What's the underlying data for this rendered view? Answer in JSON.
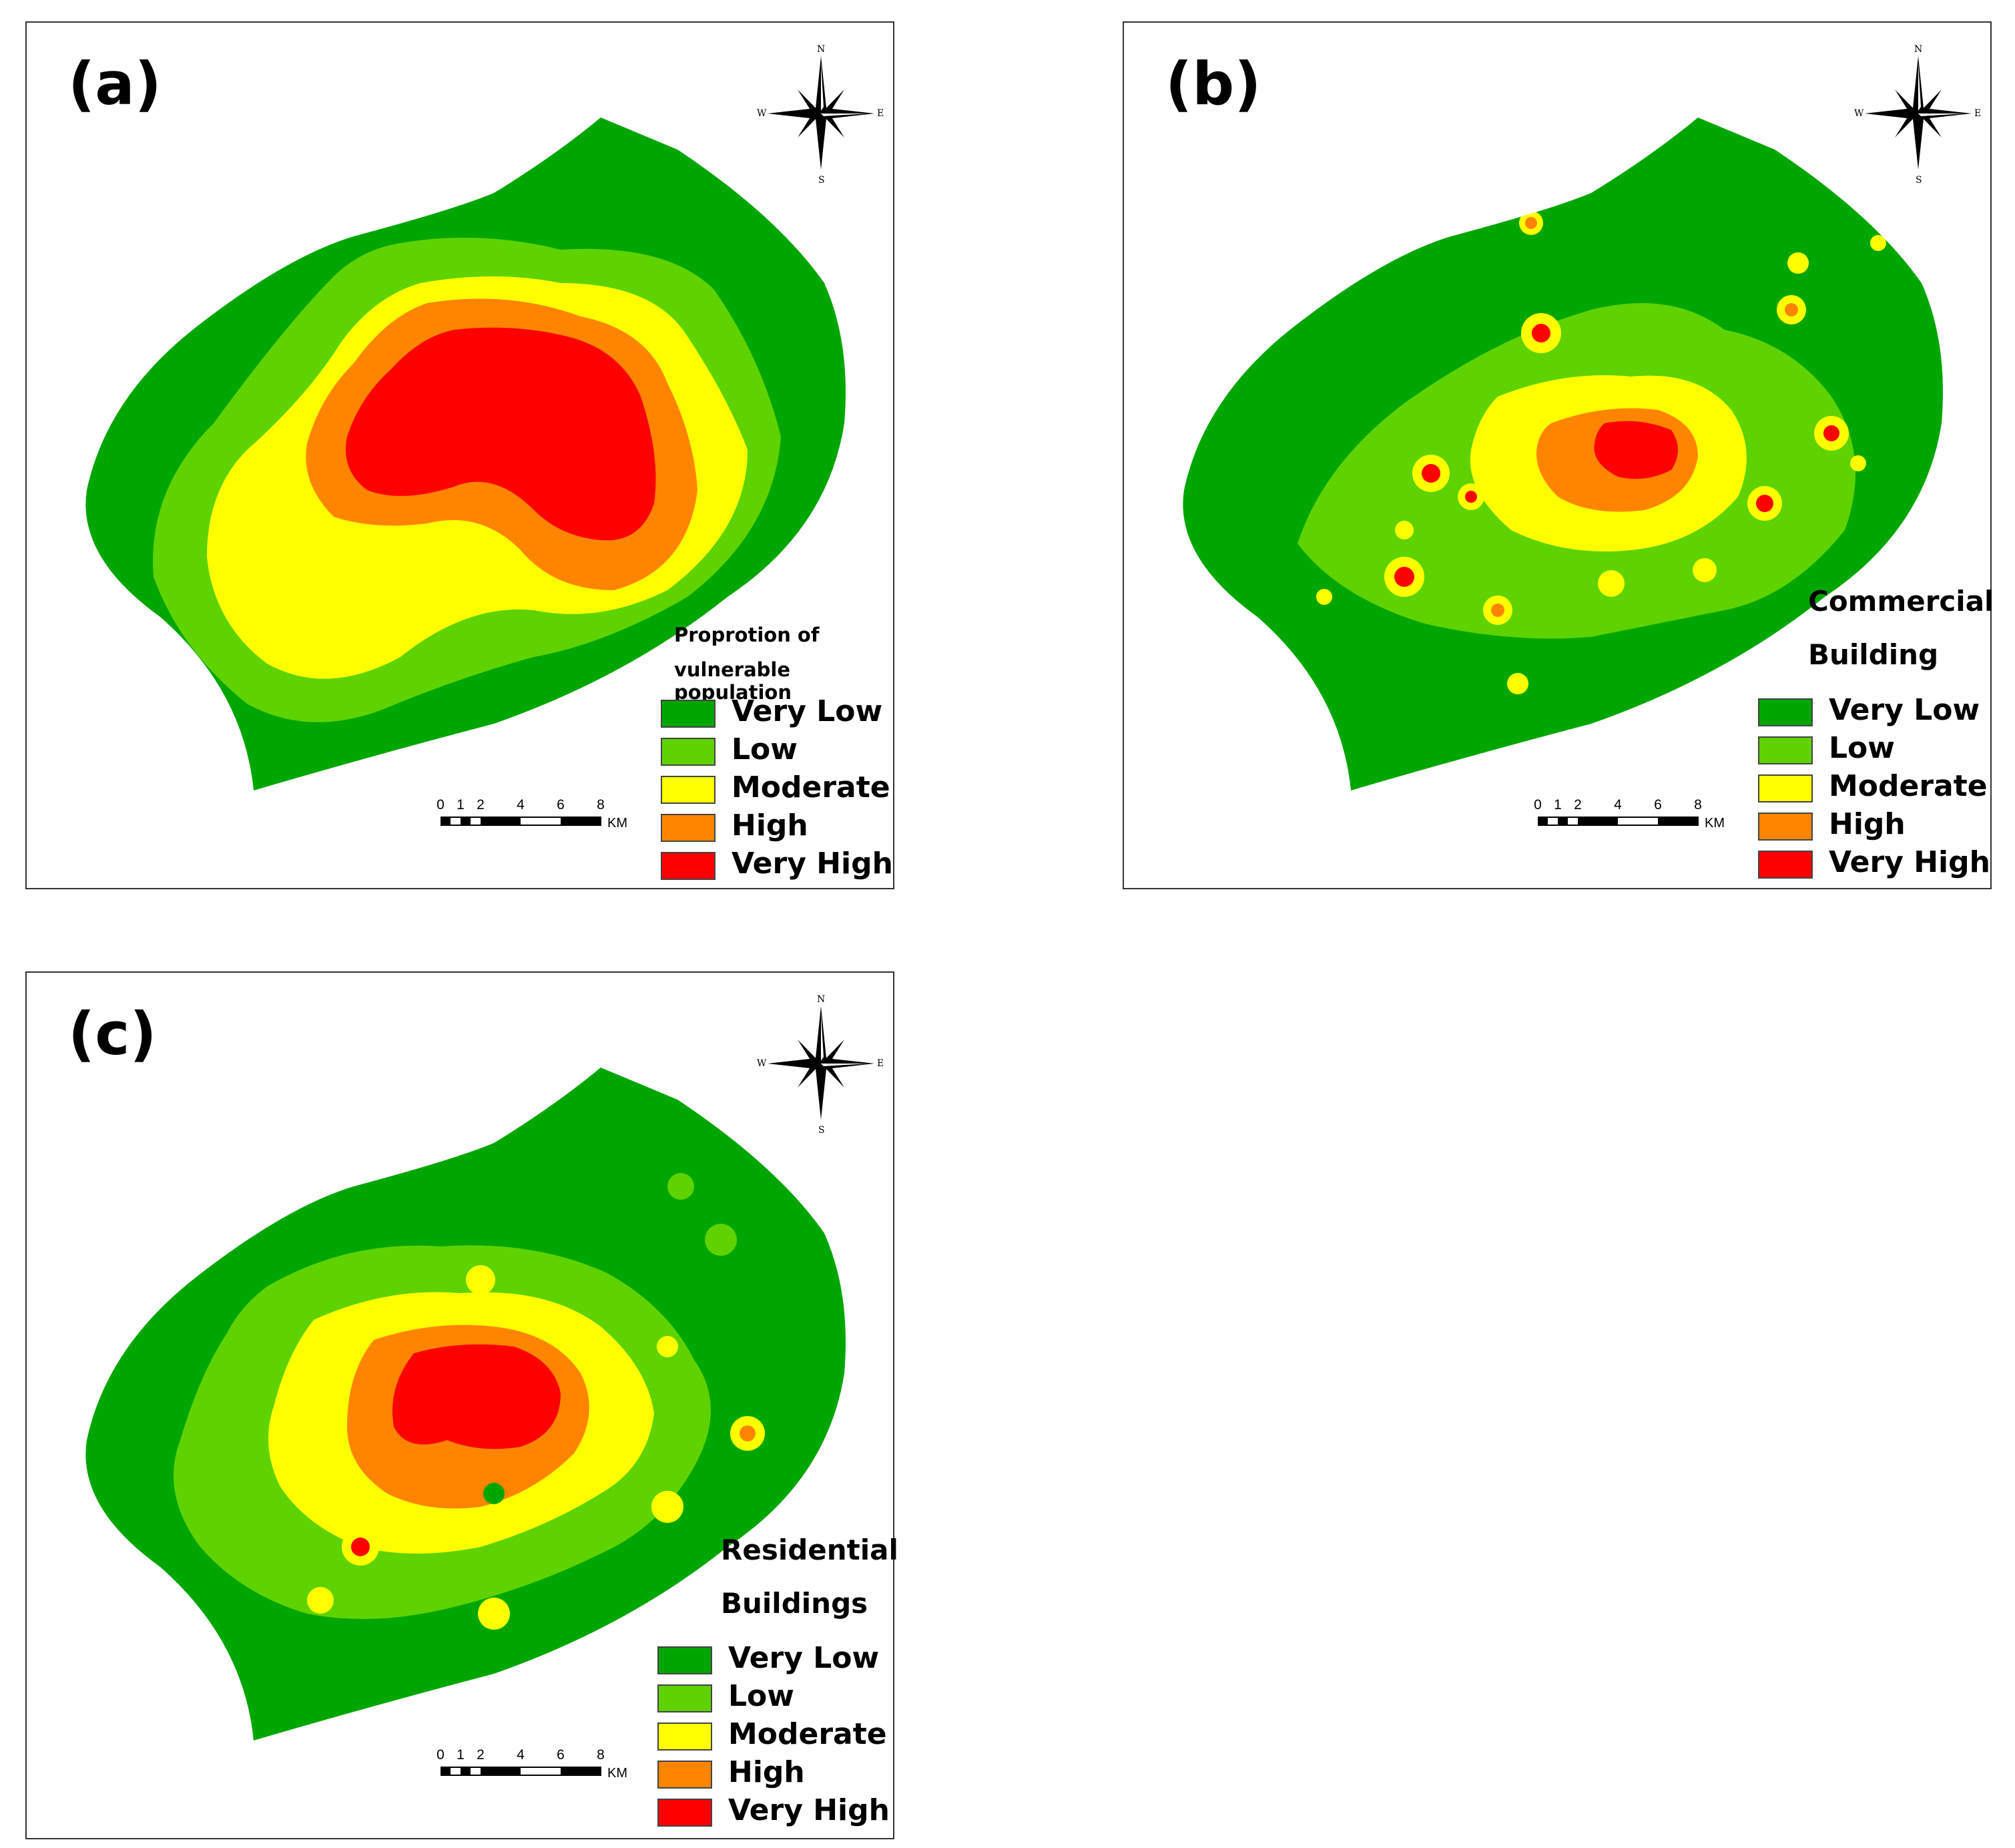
{
  "panels": {
    "a": {
      "label": "(a)",
      "legend_title_line1": "Proprotion of",
      "legend_title_line2": "vulnerable population"
    },
    "b": {
      "label": "(b)",
      "legend_title_line1": "Commercial",
      "legend_title_line2": "Building"
    },
    "c": {
      "label": "(c)",
      "legend_title_line1": "Residential",
      "legend_title_line2": "Buildings"
    }
  },
  "legend": {
    "classes": [
      {
        "label": "Very Low",
        "color": "#00a600"
      },
      {
        "label": "Low",
        "color": "#5ed300"
      },
      {
        "label": "Moderate",
        "color": "#ffff00"
      },
      {
        "label": "High",
        "color": "#ff8500"
      },
      {
        "label": "Very High",
        "color": "#ff0000"
      }
    ]
  },
  "scalebar": {
    "ticks": [
      "0",
      "1",
      "2",
      "4",
      "6",
      "8"
    ],
    "unit": "KM"
  },
  "compass": {
    "n": "N",
    "s": "S",
    "e": "E",
    "w": "W"
  }
}
